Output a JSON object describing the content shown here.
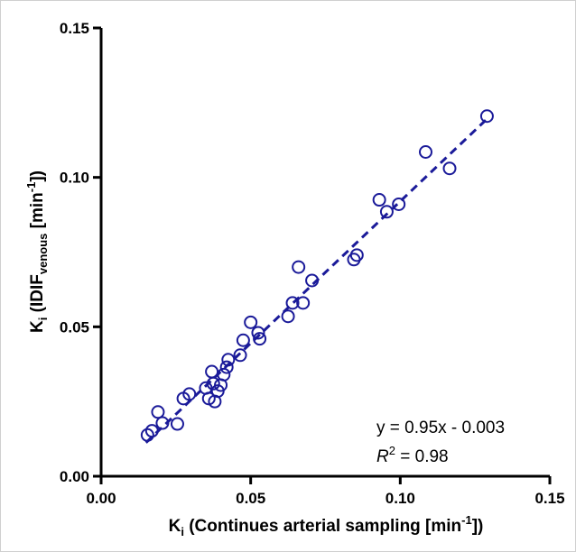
{
  "chart_data": {
    "type": "scatter",
    "title": "",
    "xlabel": {
      "main": "K",
      "sub": "i",
      "rest": " (Continues arterial sampling [min",
      "sup": "-1",
      "end": "])"
    },
    "ylabel": {
      "main": "K",
      "sub": "i",
      "rest": " (IDIF",
      "sub2": "venous",
      "rest2": " [min",
      "sup": "-1",
      "end": "])"
    },
    "xlim": [
      0,
      0.15
    ],
    "ylim": [
      0,
      0.15
    ],
    "x_ticks": [
      "0.00",
      "0.05",
      "0.10",
      "0.15"
    ],
    "y_ticks": [
      "0.00",
      "0.05",
      "0.10",
      "0.15"
    ],
    "x_tick_values": [
      0,
      0.05,
      0.1,
      0.15
    ],
    "y_tick_values": [
      0,
      0.05,
      0.1,
      0.15
    ],
    "grid": false,
    "marker_color": "#1a1a99",
    "line_color": "#1a1a99",
    "points": [
      [
        0.0155,
        0.0138
      ],
      [
        0.017,
        0.0152
      ],
      [
        0.019,
        0.0215
      ],
      [
        0.0205,
        0.0178
      ],
      [
        0.0255,
        0.0175
      ],
      [
        0.0275,
        0.026
      ],
      [
        0.0295,
        0.0275
      ],
      [
        0.035,
        0.0295
      ],
      [
        0.036,
        0.026
      ],
      [
        0.037,
        0.035
      ],
      [
        0.0375,
        0.031
      ],
      [
        0.038,
        0.025
      ],
      [
        0.039,
        0.0285
      ],
      [
        0.04,
        0.0305
      ],
      [
        0.041,
        0.034
      ],
      [
        0.042,
        0.0365
      ],
      [
        0.0425,
        0.039
      ],
      [
        0.0465,
        0.0405
      ],
      [
        0.0475,
        0.0455
      ],
      [
        0.05,
        0.0515
      ],
      [
        0.0525,
        0.048
      ],
      [
        0.053,
        0.046
      ],
      [
        0.0625,
        0.0535
      ],
      [
        0.064,
        0.058
      ],
      [
        0.066,
        0.07
      ],
      [
        0.0675,
        0.058
      ],
      [
        0.0705,
        0.0655
      ],
      [
        0.0845,
        0.0725
      ],
      [
        0.0855,
        0.074
      ],
      [
        0.093,
        0.0925
      ],
      [
        0.0955,
        0.0885
      ],
      [
        0.0995,
        0.091
      ],
      [
        0.1085,
        0.1085
      ],
      [
        0.1165,
        0.103
      ],
      [
        0.129,
        0.1205
      ]
    ],
    "fit_line": {
      "slope": 0.95,
      "intercept": -0.003,
      "x_range": [
        0.015,
        0.129
      ]
    },
    "annotations": {
      "equation": "y = 0.95x - 0.003",
      "r2_label": "R",
      "r2_sup": "2",
      "r2_value": " = 0.98"
    }
  }
}
